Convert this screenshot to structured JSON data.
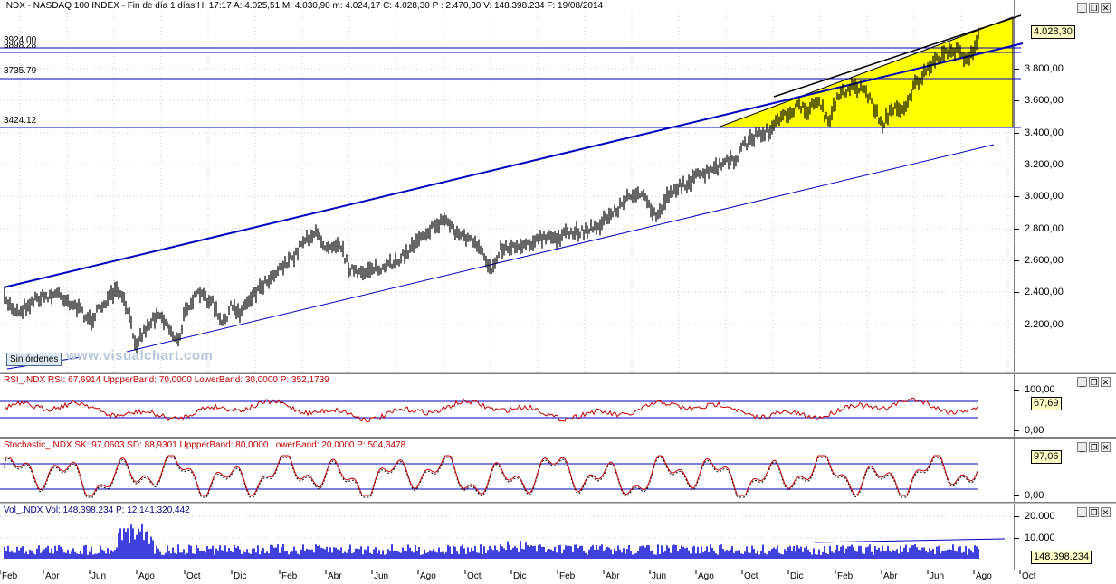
{
  "main": {
    "header": ".NDX - NASDAQ 100 INDEX - Fin de día 1 días  H: 17:17  A: 4.025,51  M: 4.030,90  m: 4.024,17  C: 4.028,30  P : 2.470,30  V: 148.398.234  F: 19/08/2014",
    "hlines": [
      "3924.00",
      "3898.28",
      "3735.79",
      "3424.12"
    ],
    "yticks": [
      "3.800,00",
      "3.600,00",
      "3.400,00",
      "3.200,00",
      "3.000,00",
      "2.800,00",
      "2.600,00",
      "2.400,00",
      "2.200,00"
    ],
    "last_value": "4.028,30",
    "badge": "Sin órdenes",
    "watermark": "www.visualchart.com",
    "colors": {
      "price": "#000000",
      "trendline": "#0000c0",
      "triangle": "#ffff00"
    }
  },
  "rsi": {
    "header": "RSI_.NDX  RSI: 67,6914  UppperBand: 70,0000  LowerBand: 30,0000  P: 352,1739",
    "yticks": [
      "100,00",
      "0,00"
    ],
    "last_value": "67,69",
    "bands": [
      70,
      30
    ]
  },
  "stoch": {
    "header": "Stochastic_.NDX  SK: 97,0603  SD: 88,9301  UppperBand: 80,0000  LowerBand: 20,0000  P: 504,3478",
    "yticks": [
      "0,00"
    ],
    "last_value": "97,06",
    "bands": [
      80,
      20
    ]
  },
  "vol": {
    "header": "Vol_.NDX  Vol: 148.398.234  P: 12.141.320.442",
    "yticks": [
      "20.000",
      "10.000"
    ],
    "last_value": "148.398.234"
  },
  "months": [
    "Feb",
    "Abr",
    "Jun",
    "Ago",
    "Oct",
    "Dic",
    "Feb",
    "Abr",
    "Jun",
    "Ago",
    "Oct",
    "Dic",
    "Feb",
    "Abr",
    "Jun",
    "Ago",
    "Oct",
    "Dic",
    "Feb",
    "Abr",
    "Jun",
    "Ago",
    "Oct"
  ],
  "window_buttons": {
    "minimize": "_",
    "restore": "❐",
    "close": "✕"
  }
}
